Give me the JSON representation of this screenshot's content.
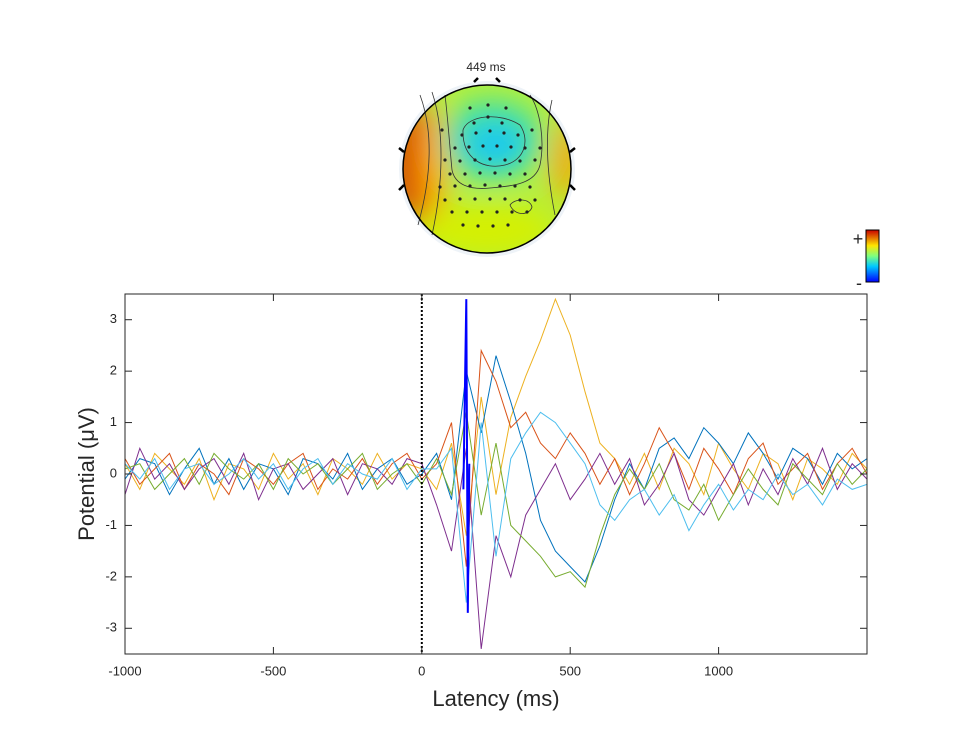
{
  "topo_title": "449 ms",
  "colorbar": {
    "plus": "+",
    "minus": "-"
  },
  "chart_data": {
    "type": "line",
    "xlabel": "Latency (ms)",
    "ylabel": "Potential (μV)",
    "xlim": [
      -1000,
      1500
    ],
    "ylim": [
      -3.5,
      3.5
    ],
    "xticks": [
      -1000,
      -500,
      0,
      500,
      1000
    ],
    "yticks": [
      -3,
      -2,
      -1,
      0,
      1,
      2,
      3
    ],
    "vlines": [
      0
    ],
    "x": [
      -1000,
      -950,
      -900,
      -850,
      -800,
      -750,
      -700,
      -650,
      -600,
      -550,
      -500,
      -450,
      -400,
      -350,
      -300,
      -250,
      -200,
      -150,
      -100,
      -50,
      0,
      50,
      100,
      150,
      200,
      250,
      300,
      350,
      400,
      450,
      500,
      550,
      600,
      650,
      700,
      750,
      800,
      850,
      900,
      950,
      1000,
      1050,
      1100,
      1150,
      1200,
      1250,
      1300,
      1350,
      1400,
      1450,
      1500
    ],
    "series": [
      {
        "color": "#EDB120",
        "values": [
          0.2,
          -0.3,
          0.4,
          0.1,
          -0.2,
          0.3,
          -0.5,
          0.2,
          0.1,
          -0.3,
          0.4,
          -0.1,
          0.2,
          -0.4,
          0.3,
          0.1,
          -0.2,
          0.4,
          -0.1,
          0.2,
          0.1,
          -0.3,
          0.6,
          -1.2,
          1.5,
          -0.4,
          1.1,
          1.9,
          2.6,
          3.4,
          2.7,
          1.6,
          0.6,
          0.3,
          -0.2,
          0.4,
          -0.3,
          0.5,
          0.2,
          -0.4,
          0.6,
          0.1,
          -0.3,
          0.4,
          0.2,
          -0.5,
          0.3,
          0.1,
          -0.2,
          0.4,
          0.1
        ]
      },
      {
        "color": "#0072BD",
        "values": [
          -0.1,
          0.3,
          0.2,
          -0.4,
          0.1,
          0.5,
          -0.2,
          0.3,
          -0.3,
          0.2,
          0.1,
          -0.4,
          0.3,
          0.2,
          -0.1,
          0.4,
          -0.3,
          0.1,
          0.3,
          -0.2,
          0.0,
          0.4,
          -0.5,
          2.0,
          0.8,
          2.3,
          1.4,
          0.4,
          -0.9,
          -1.5,
          -1.8,
          -2.1,
          -1.4,
          -0.5,
          0.2,
          -0.3,
          0.5,
          0.7,
          0.3,
          0.9,
          0.6,
          0.2,
          0.8,
          0.4,
          -0.1,
          0.5,
          0.3,
          -0.2,
          0.4,
          0.1,
          0.3
        ]
      },
      {
        "color": "#D95319",
        "values": [
          0.3,
          -0.2,
          0.1,
          0.4,
          -0.3,
          0.2,
          0.0,
          -0.4,
          0.3,
          0.1,
          -0.2,
          0.2,
          0.4,
          -0.3,
          0.1,
          -0.1,
          0.3,
          -0.2,
          0.2,
          0.4,
          -0.1,
          0.2,
          1.0,
          -1.8,
          2.4,
          1.8,
          0.9,
          1.2,
          0.6,
          0.3,
          0.8,
          0.4,
          -0.2,
          0.3,
          -0.4,
          0.2,
          0.9,
          0.4,
          -0.3,
          0.5,
          0.1,
          -0.4,
          0.3,
          0.6,
          -0.2,
          0.1,
          0.4,
          -0.3,
          0.2,
          0.5,
          0.0
        ]
      },
      {
        "color": "#7E2F8E",
        "values": [
          -0.4,
          0.5,
          -0.1,
          0.2,
          -0.3,
          0.1,
          0.3,
          -0.2,
          0.4,
          -0.5,
          0.1,
          0.2,
          -0.3,
          0.0,
          0.3,
          -0.4,
          0.2,
          0.1,
          -0.2,
          0.3,
          0.2,
          -0.6,
          -1.5,
          0.5,
          -3.4,
          -1.2,
          -2.0,
          -0.8,
          -0.3,
          0.2,
          -0.5,
          -0.1,
          0.4,
          -0.2,
          0.3,
          -0.6,
          -0.2,
          0.4,
          -0.5,
          -0.8,
          -0.3,
          0.2,
          -0.6,
          0.1,
          -0.4,
          0.3,
          -0.2,
          0.5,
          -0.3,
          0.2,
          -0.1
        ]
      },
      {
        "color": "#77AC30",
        "values": [
          0.1,
          0.2,
          -0.3,
          0.0,
          0.3,
          -0.2,
          0.4,
          0.1,
          -0.1,
          0.2,
          -0.3,
          0.3,
          0.0,
          0.2,
          -0.2,
          0.1,
          0.4,
          -0.3,
          0.0,
          0.2,
          -0.2,
          0.3,
          -0.4,
          1.2,
          -0.8,
          0.6,
          -1.0,
          -1.3,
          -1.6,
          -2.0,
          -1.9,
          -2.2,
          -1.2,
          -0.4,
          0.1,
          -0.3,
          0.2,
          -0.5,
          -0.7,
          -0.2,
          -0.9,
          -0.4,
          0.1,
          -0.3,
          -0.6,
          0.2,
          -0.1,
          -0.4,
          0.2,
          -0.2,
          0.1
        ]
      },
      {
        "color": "#4DBEEE",
        "values": [
          0.2,
          -0.1,
          0.3,
          -0.3,
          0.1,
          0.2,
          -0.2,
          0.0,
          0.3,
          -0.1,
          0.2,
          -0.3,
          0.1,
          0.3,
          -0.2,
          0.2,
          0.0,
          -0.1,
          0.3,
          -0.3,
          0.1,
          0.1,
          0.5,
          -2.5,
          1.0,
          -1.6,
          0.3,
          0.8,
          1.2,
          1.0,
          0.6,
          0.2,
          -0.6,
          -0.9,
          -0.5,
          -0.3,
          -0.8,
          -0.4,
          -1.1,
          -0.6,
          -0.2,
          -0.7,
          -0.3,
          -0.5,
          0.0,
          -0.4,
          -0.2,
          -0.6,
          -0.1,
          -0.3,
          -0.2
        ]
      },
      {
        "color": "#0000FF",
        "x": [
          140,
          150,
          155,
          160
        ],
        "values": [
          -0.3,
          3.4,
          -2.7,
          0.2
        ]
      }
    ]
  }
}
